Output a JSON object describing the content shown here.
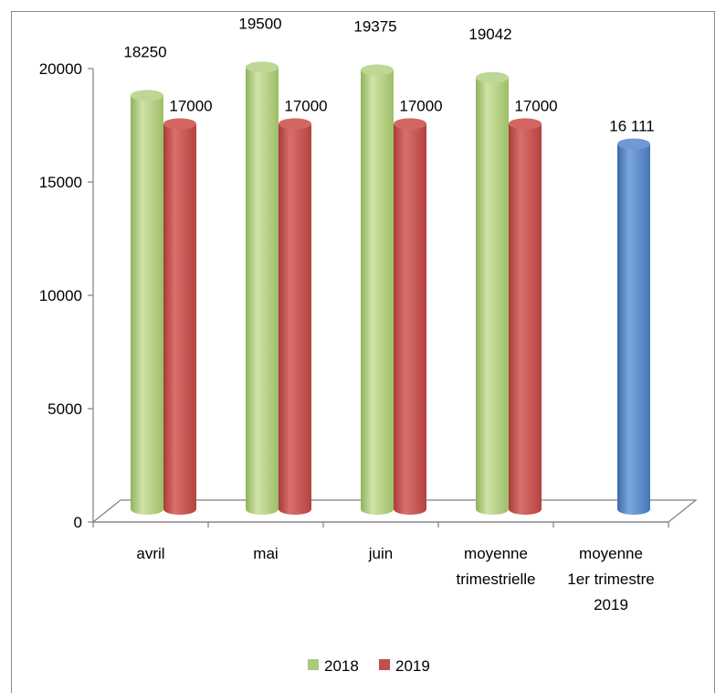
{
  "chart_data": {
    "type": "bar",
    "title": "",
    "xlabel": "",
    "ylabel": "",
    "ylim": [
      0,
      20000
    ],
    "yticks": [
      0,
      5000,
      10000,
      15000,
      20000
    ],
    "grid": false,
    "legend_position": "bottom",
    "categories": [
      [
        "avril"
      ],
      [
        "mai"
      ],
      [
        "juin"
      ],
      [
        "moyenne",
        "trimestrielle"
      ],
      [
        "moyenne",
        "1er trimestre",
        "2019"
      ]
    ],
    "series": [
      {
        "name": "2018",
        "color": "#a9c97c",
        "values": [
          18250,
          19500,
          19375,
          19042,
          null
        ],
        "labels": [
          "18250",
          "19500",
          "19375",
          "19042",
          null
        ]
      },
      {
        "name": "2019",
        "color": "#c0504d",
        "values": [
          17000,
          17000,
          17000,
          17000,
          16111
        ],
        "labels": [
          "17000",
          "17000",
          "17000",
          "17000",
          "16 111"
        ],
        "point_colors": [
          null,
          null,
          null,
          null,
          "#4f81bd"
        ]
      }
    ]
  }
}
